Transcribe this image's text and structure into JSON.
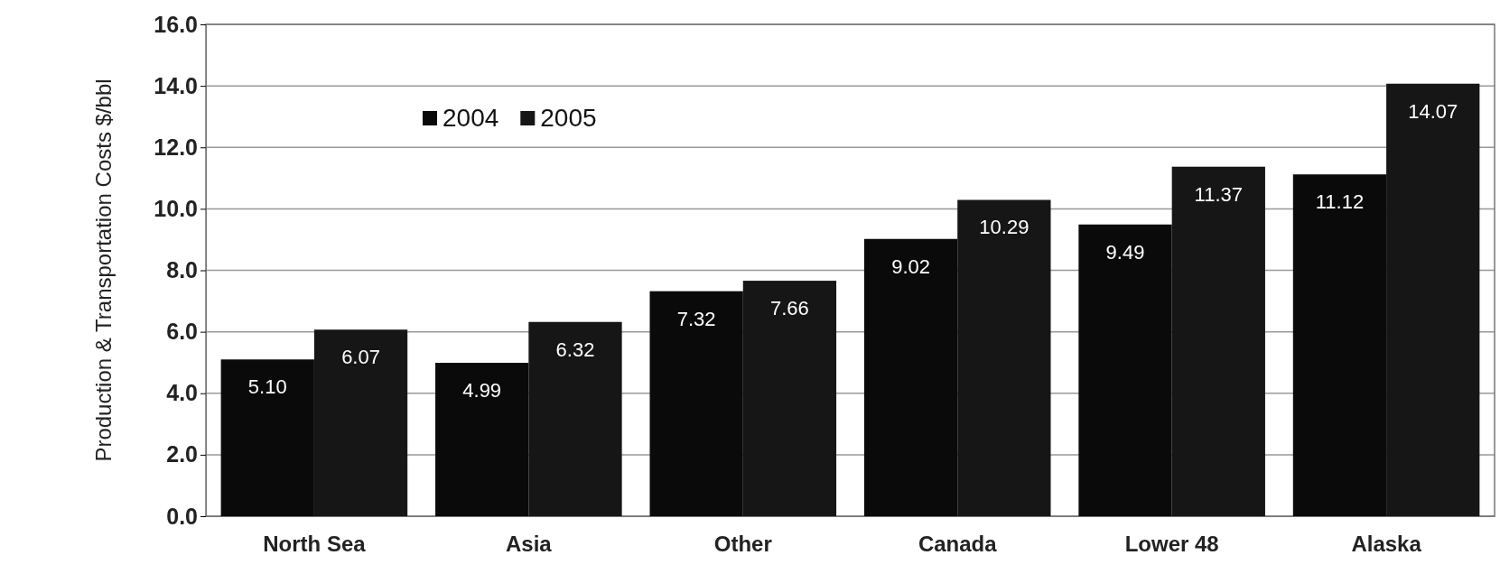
{
  "chart_data": {
    "type": "bar",
    "ylabel": "Production & Transportation Costs $/bbl",
    "categories": [
      "North Sea",
      "Asia",
      "Other",
      "Canada",
      "Lower 48",
      "Alaska"
    ],
    "series": [
      {
        "name": "2004",
        "color": "#0a0a0a",
        "values": [
          5.1,
          4.99,
          7.32,
          9.02,
          9.49,
          11.12
        ],
        "value_labels": [
          "5.10",
          "4.99",
          "7.32",
          "9.02",
          "9.49",
          "11.12"
        ]
      },
      {
        "name": "2005",
        "color": "#161616",
        "values": [
          6.07,
          6.32,
          7.66,
          10.29,
          11.37,
          14.07
        ],
        "value_labels": [
          "6.07",
          "6.32",
          "7.66",
          "10.29",
          "11.37",
          "14.07"
        ]
      }
    ],
    "ylim": [
      0,
      16
    ],
    "yticks": [
      {
        "value": 0,
        "label": "0.0"
      },
      {
        "value": 2,
        "label": "2.0"
      },
      {
        "value": 4,
        "label": "4.0"
      },
      {
        "value": 6,
        "label": "6.0"
      },
      {
        "value": 8,
        "label": "8.0"
      },
      {
        "value": 10,
        "label": "10.0"
      },
      {
        "value": 12,
        "label": "12.0"
      },
      {
        "value": 14,
        "label": "14.0"
      },
      {
        "value": 16,
        "label": "16.0"
      }
    ],
    "grid": "y",
    "legend": "top left"
  }
}
